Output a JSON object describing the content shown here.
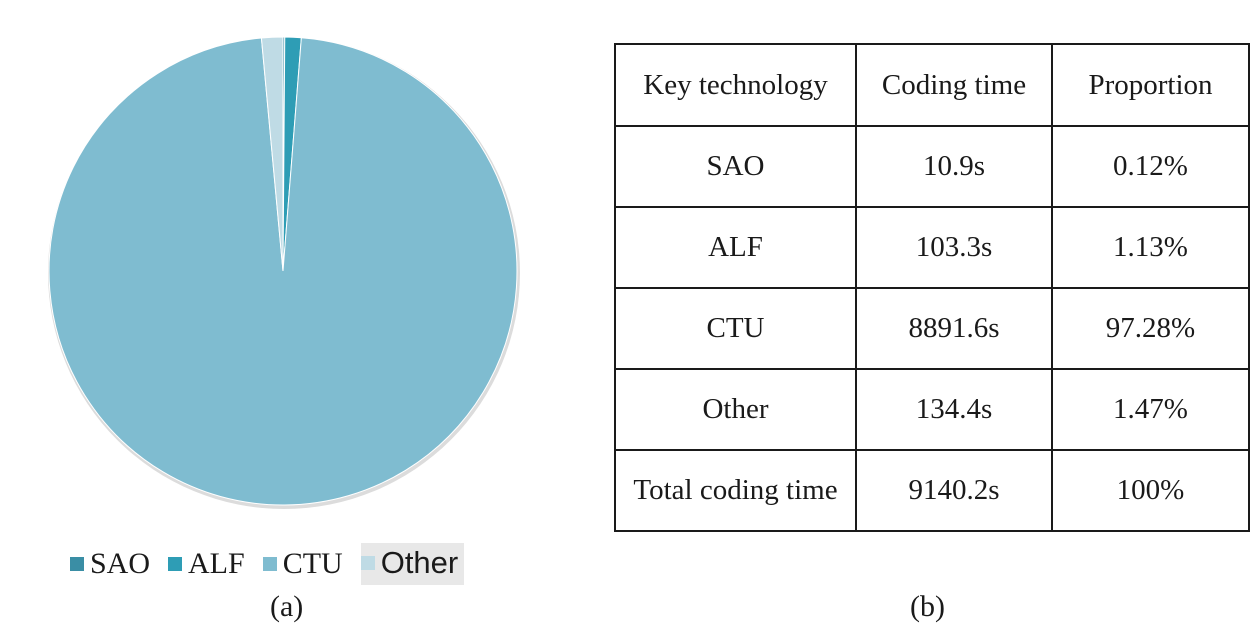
{
  "chart_data": {
    "type": "pie",
    "categories": [
      "SAO",
      "ALF",
      "CTU",
      "Other"
    ],
    "values": [
      0.12,
      1.13,
      97.28,
      1.47
    ],
    "units": "%",
    "colors": [
      "#3a8ea5",
      "#2e9db5",
      "#7fbcd0",
      "#bfdbe5"
    ],
    "legend_position": "bottom"
  },
  "legend": [
    {
      "label": "SAO",
      "color": "#3a8ea5"
    },
    {
      "label": "ALF",
      "color": "#2e9db5"
    },
    {
      "label": "CTU",
      "color": "#7fbcd0"
    },
    {
      "label": "Other",
      "color": "#bfdbe5"
    }
  ],
  "captions": {
    "a": "(a)",
    "b": "(b)"
  },
  "table": {
    "headers": [
      "Key technology",
      "Coding time",
      "Proportion"
    ],
    "rows": [
      [
        "SAO",
        "10.9s",
        "0.12%"
      ],
      [
        "ALF",
        "103.3s",
        "1.13%"
      ],
      [
        "CTU",
        "8891.6s",
        "97.28%"
      ],
      [
        "Other",
        "134.4s",
        "1.47%"
      ],
      [
        "Total coding time",
        "9140.2s",
        "100%"
      ]
    ]
  }
}
